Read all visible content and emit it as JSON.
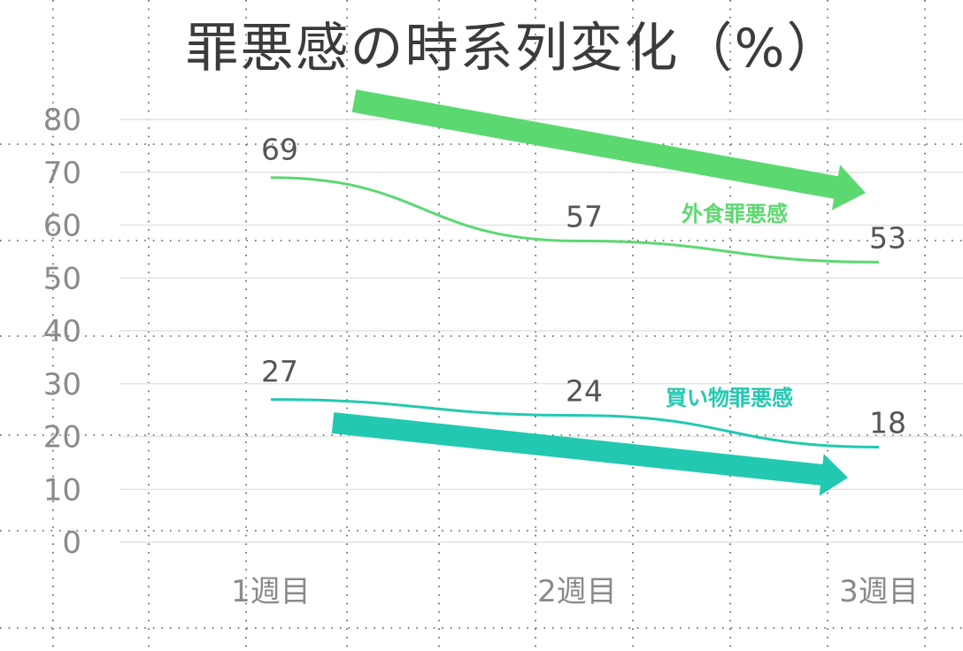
{
  "chart_data": {
    "type": "line",
    "title": "罪悪感の時系列変化（%）",
    "categories": [
      "1週目",
      "2週目",
      "3週目"
    ],
    "ylim": [
      0,
      80
    ],
    "yticks": [
      0,
      10,
      20,
      30,
      40,
      50,
      60,
      70,
      80
    ],
    "grid": true,
    "series": [
      {
        "name": "外食罪悪感",
        "values": [
          69,
          57,
          53
        ],
        "color": "#5cd870",
        "trend": "down"
      },
      {
        "name": "買い物罪悪感",
        "values": [
          27,
          24,
          18
        ],
        "color": "#22c9b0",
        "trend": "down"
      }
    ]
  }
}
